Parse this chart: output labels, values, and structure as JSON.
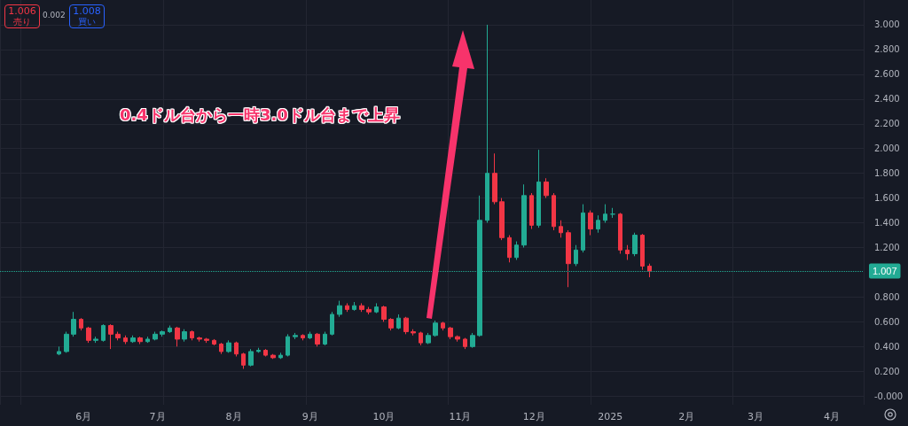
{
  "chart_data": {
    "type": "candlestick",
    "annotations": [
      "0.4ドル台から一時3.0ドル台まで上昇",
      "1.006",
      "売り",
      "0.002",
      "1.008",
      "買い"
    ],
    "x": [
      "2024-05-22",
      "2024-05-25",
      "2024-05-28",
      "2024-05-31",
      "2024-06-03",
      "2024-06-06",
      "2024-06-09",
      "2024-06-12",
      "2024-06-15",
      "2024-06-18",
      "2024-06-21",
      "2024-06-24",
      "2024-06-27",
      "2024-06-30",
      "2024-07-03",
      "2024-07-06",
      "2024-07-09",
      "2024-07-12",
      "2024-07-15",
      "2024-07-18",
      "2024-07-21",
      "2024-07-24",
      "2024-07-27",
      "2024-07-30",
      "2024-08-02",
      "2024-08-05",
      "2024-08-08",
      "2024-08-11",
      "2024-08-14",
      "2024-08-17",
      "2024-08-20",
      "2024-08-23",
      "2024-08-26",
      "2024-08-29",
      "2024-09-01",
      "2024-09-04",
      "2024-09-07",
      "2024-09-10",
      "2024-09-13",
      "2024-09-16",
      "2024-09-19",
      "2024-09-22",
      "2024-09-25",
      "2024-09-28",
      "2024-10-01",
      "2024-10-04",
      "2024-10-07",
      "2024-10-10",
      "2024-10-13",
      "2024-10-16",
      "2024-10-19",
      "2024-10-22",
      "2024-10-25",
      "2024-10-28",
      "2024-10-31",
      "2024-11-03",
      "2024-11-06",
      "2024-11-09",
      "2024-11-12",
      "2024-11-15",
      "2024-11-18",
      "2024-11-21",
      "2024-11-24",
      "2024-11-27",
      "2024-11-30",
      "2024-12-03",
      "2024-12-06",
      "2024-12-09",
      "2024-12-12",
      "2024-12-15",
      "2024-12-18",
      "2024-12-21",
      "2024-12-24",
      "2024-12-27",
      "2024-12-30",
      "2025-01-02",
      "2025-01-05",
      "2025-01-08",
      "2025-01-11",
      "2025-01-14",
      "2025-01-17"
    ],
    "ohlc": [
      [
        0.34,
        0.4,
        0.33,
        0.36
      ],
      [
        0.36,
        0.52,
        0.35,
        0.5
      ],
      [
        0.5,
        0.68,
        0.48,
        0.62
      ],
      [
        0.62,
        0.63,
        0.53,
        0.55
      ],
      [
        0.55,
        0.56,
        0.43,
        0.45
      ],
      [
        0.45,
        0.48,
        0.43,
        0.46
      ],
      [
        0.45,
        0.58,
        0.44,
        0.57
      ],
      [
        0.57,
        0.58,
        0.38,
        0.5
      ],
      [
        0.5,
        0.52,
        0.45,
        0.47
      ],
      [
        0.47,
        0.49,
        0.42,
        0.44
      ],
      [
        0.44,
        0.49,
        0.43,
        0.47
      ],
      [
        0.47,
        0.48,
        0.42,
        0.44
      ],
      [
        0.44,
        0.48,
        0.43,
        0.46
      ],
      [
        0.46,
        0.52,
        0.45,
        0.5
      ],
      [
        0.5,
        0.53,
        0.48,
        0.52
      ],
      [
        0.52,
        0.57,
        0.51,
        0.55
      ],
      [
        0.55,
        0.56,
        0.4,
        0.46
      ],
      [
        0.46,
        0.54,
        0.44,
        0.52
      ],
      [
        0.52,
        0.53,
        0.45,
        0.47
      ],
      [
        0.47,
        0.48,
        0.44,
        0.46
      ],
      [
        0.46,
        0.47,
        0.43,
        0.45
      ],
      [
        0.45,
        0.46,
        0.41,
        0.42
      ],
      [
        0.42,
        0.43,
        0.34,
        0.36
      ],
      [
        0.36,
        0.45,
        0.35,
        0.43
      ],
      [
        0.43,
        0.44,
        0.32,
        0.34
      ],
      [
        0.34,
        0.35,
        0.22,
        0.25
      ],
      [
        0.25,
        0.38,
        0.24,
        0.36
      ],
      [
        0.36,
        0.39,
        0.35,
        0.37
      ],
      [
        0.37,
        0.38,
        0.32,
        0.33
      ],
      [
        0.33,
        0.34,
        0.3,
        0.31
      ],
      [
        0.31,
        0.35,
        0.3,
        0.33
      ],
      [
        0.33,
        0.5,
        0.32,
        0.48
      ],
      [
        0.48,
        0.51,
        0.46,
        0.49
      ],
      [
        0.49,
        0.5,
        0.45,
        0.47
      ],
      [
        0.47,
        0.52,
        0.46,
        0.5
      ],
      [
        0.5,
        0.51,
        0.4,
        0.42
      ],
      [
        0.42,
        0.52,
        0.41,
        0.5
      ],
      [
        0.5,
        0.68,
        0.49,
        0.66
      ],
      [
        0.66,
        0.77,
        0.64,
        0.73
      ],
      [
        0.73,
        0.75,
        0.68,
        0.7
      ],
      [
        0.7,
        0.76,
        0.69,
        0.73
      ],
      [
        0.73,
        0.75,
        0.68,
        0.7
      ],
      [
        0.7,
        0.72,
        0.66,
        0.68
      ],
      [
        0.68,
        0.75,
        0.67,
        0.72
      ],
      [
        0.72,
        0.73,
        0.6,
        0.62
      ],
      [
        0.62,
        0.63,
        0.53,
        0.55
      ],
      [
        0.55,
        0.66,
        0.54,
        0.63
      ],
      [
        0.63,
        0.64,
        0.5,
        0.52
      ],
      [
        0.52,
        0.54,
        0.49,
        0.51
      ],
      [
        0.51,
        0.52,
        0.41,
        0.43
      ],
      [
        0.43,
        0.51,
        0.42,
        0.49
      ],
      [
        0.49,
        0.61,
        0.48,
        0.59
      ],
      [
        0.59,
        0.6,
        0.53,
        0.55
      ],
      [
        0.55,
        0.56,
        0.46,
        0.48
      ],
      [
        0.48,
        0.49,
        0.44,
        0.46
      ],
      [
        0.46,
        0.47,
        0.38,
        0.4
      ],
      [
        0.4,
        0.51,
        0.39,
        0.49
      ],
      [
        0.49,
        1.62,
        0.48,
        1.42
      ],
      [
        1.42,
        3.0,
        1.4,
        1.8
      ],
      [
        1.8,
        1.96,
        1.55,
        1.57
      ],
      [
        1.57,
        1.6,
        1.26,
        1.28
      ],
      [
        1.28,
        1.3,
        1.08,
        1.12
      ],
      [
        1.12,
        1.25,
        1.1,
        1.22
      ],
      [
        1.22,
        1.71,
        1.2,
        1.62
      ],
      [
        1.62,
        1.64,
        1.35,
        1.38
      ],
      [
        1.38,
        1.99,
        1.36,
        1.73
      ],
      [
        1.73,
        1.76,
        1.6,
        1.62
      ],
      [
        1.62,
        1.64,
        1.34,
        1.37
      ],
      [
        1.37,
        1.42,
        1.28,
        1.32
      ],
      [
        1.32,
        1.34,
        0.88,
        1.07
      ],
      [
        1.07,
        1.22,
        1.05,
        1.18
      ],
      [
        1.18,
        1.55,
        1.16,
        1.48
      ],
      [
        1.48,
        1.5,
        1.3,
        1.35
      ],
      [
        1.35,
        1.46,
        1.32,
        1.42
      ],
      [
        1.42,
        1.55,
        1.4,
        1.47
      ],
      [
        1.47,
        1.52,
        1.44,
        1.47
      ],
      [
        1.47,
        1.48,
        1.15,
        1.18
      ],
      [
        1.18,
        1.22,
        1.1,
        1.15
      ],
      [
        1.15,
        1.32,
        1.13,
        1.3
      ],
      [
        1.3,
        1.31,
        1.02,
        1.05
      ],
      [
        1.05,
        1.07,
        0.96,
        1.01
      ]
    ],
    "colors": [
      "#22ab94",
      "#22ab94",
      "#22ab94",
      "#f23645",
      "#f23645",
      "#22ab94",
      "#22ab94",
      "#f23645",
      "#f23645",
      "#f23645",
      "#22ab94",
      "#f23645",
      "#22ab94",
      "#22ab94",
      "#22ab94",
      "#22ab94",
      "#f23645",
      "#22ab94",
      "#f23645",
      "#f23645",
      "#f23645",
      "#f23645",
      "#f23645",
      "#22ab94",
      "#f23645",
      "#f23645",
      "#22ab94",
      "#22ab94",
      "#f23645",
      "#f23645",
      "#22ab94",
      "#22ab94",
      "#22ab94",
      "#f23645",
      "#22ab94",
      "#f23645",
      "#22ab94",
      "#22ab94",
      "#22ab94",
      "#f23645",
      "#22ab94",
      "#f23645",
      "#f23645",
      "#22ab94",
      "#f23645",
      "#f23645",
      "#22ab94",
      "#f23645",
      "#f23645",
      "#f23645",
      "#22ab94",
      "#22ab94",
      "#f23645",
      "#f23645",
      "#f23645",
      "#f23645",
      "#22ab94",
      "#22ab94",
      "#22ab94",
      "#f23645",
      "#f23645",
      "#f23645",
      "#22ab94",
      "#22ab94",
      "#f23645",
      "#22ab94",
      "#f23645",
      "#f23645",
      "#f23645",
      "#f23645",
      "#22ab94",
      "#22ab94",
      "#f23645",
      "#22ab94",
      "#22ab94",
      "#22ab94",
      "#f23645",
      "#f23645",
      "#22ab94",
      "#f23645",
      "#f23645"
    ],
    "xlim": [
      "2024-04-28",
      "2025-04-14"
    ],
    "xticks": [
      {
        "value": "2024-06-01",
        "label": "6月"
      },
      {
        "value": "2024-07-01",
        "label": "7月"
      },
      {
        "value": "2024-08-01",
        "label": "8月"
      },
      {
        "value": "2024-09-01",
        "label": "9月"
      },
      {
        "value": "2024-10-01",
        "label": "10月"
      },
      {
        "value": "2024-11-01",
        "label": "11月"
      },
      {
        "value": "2024-12-01",
        "label": "12月"
      },
      {
        "value": "2025-01-01",
        "label": "2025"
      },
      {
        "value": "2025-02-01",
        "label": "2月"
      },
      {
        "value": "2025-03-01",
        "label": "3月"
      },
      {
        "value": "2025-04-01",
        "label": "4月"
      }
    ],
    "ylim": [
      -0.07,
      3.2
    ],
    "yticks": [
      {
        "value": 0,
        "label": "-0.000"
      },
      {
        "value": 0.2,
        "label": "0.200"
      },
      {
        "value": 0.4,
        "label": "0.400"
      },
      {
        "value": 0.6,
        "label": "0.600"
      },
      {
        "value": 0.8,
        "label": "0.800"
      },
      {
        "value": 1.2,
        "label": "1.200"
      },
      {
        "value": 1.4,
        "label": "1.400"
      },
      {
        "value": 1.6,
        "label": "1.600"
      },
      {
        "value": 1.8,
        "label": "1.800"
      },
      {
        "value": 2.0,
        "label": "2.000"
      },
      {
        "value": 2.2,
        "label": "2.200"
      },
      {
        "value": 2.4,
        "label": "2.400"
      },
      {
        "value": 2.6,
        "label": "2.600"
      },
      {
        "value": 2.8,
        "label": "2.800"
      },
      {
        "value": 3.0,
        "label": "3.000"
      }
    ],
    "ref_lines": [
      {
        "axis": "y",
        "value": 1.007,
        "label": "1.007",
        "color": "#22ab94",
        "line_style": "dotted"
      }
    ],
    "grid": true
  }
}
